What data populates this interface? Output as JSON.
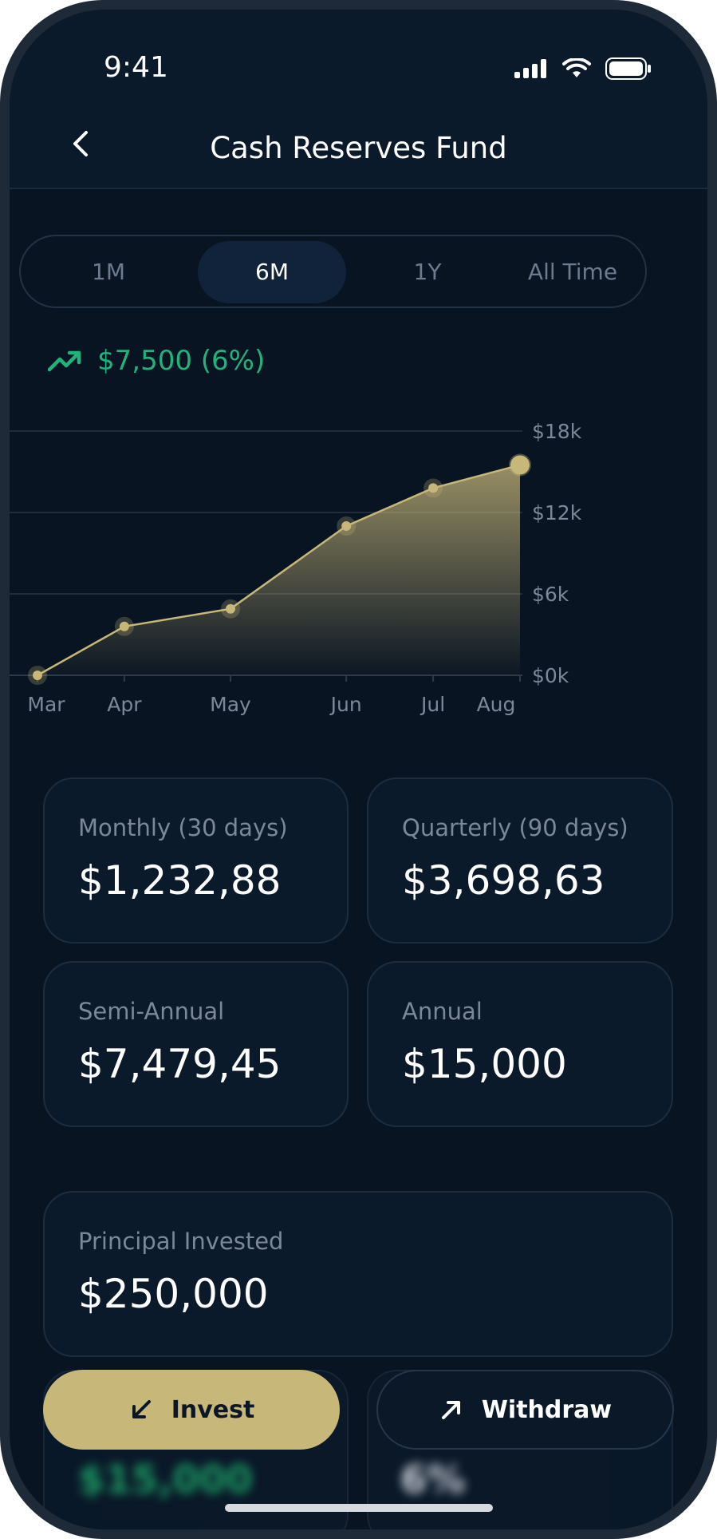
{
  "status_bar": {
    "time": "9:41"
  },
  "header": {
    "title": "Cash Reserves Fund"
  },
  "range_tabs": [
    {
      "label": "1M",
      "active": false
    },
    {
      "label": "6M",
      "active": true
    },
    {
      "label": "1Y",
      "active": false
    },
    {
      "label": "All Time",
      "active": false
    }
  ],
  "gain": {
    "text": "$7,500 (6%)",
    "color": "#21b47a"
  },
  "chart_data": {
    "type": "area",
    "categories": [
      "Mar",
      "Apr",
      "May",
      "Jun",
      "Jul",
      "Aug"
    ],
    "y_ticks": [
      "$18k",
      "$12k",
      "$6k",
      "$0k"
    ],
    "ylim": [
      0,
      18000
    ],
    "points": [
      {
        "label": "Mar",
        "x": 0,
        "y": 0
      },
      {
        "label": "Apr",
        "x": 0.9,
        "y": 3600
      },
      {
        "label": "May",
        "x": 2.0,
        "y": 4900
      },
      {
        "label": "Jun",
        "x": 3.2,
        "y": 11000
      },
      {
        "label": "Jul",
        "x": 4.1,
        "y": 13800
      },
      {
        "label": "Aug",
        "x": 5.0,
        "y": 15500
      }
    ],
    "line_color": "#c7b779"
  },
  "stats": [
    {
      "label": "Monthly (30 days)",
      "value": "$1,232,88"
    },
    {
      "label": "Quarterly (90 days)",
      "value": "$3,698,63"
    },
    {
      "label": "Semi-Annual",
      "value": "$7,479,45"
    },
    {
      "label": "Annual",
      "value": "$15,000"
    }
  ],
  "principal": {
    "label": "Principal Invested",
    "value": "$250,000"
  },
  "blurred": {
    "left": "$15,000",
    "right": "6%"
  },
  "actions": {
    "invest_label": "Invest",
    "withdraw_label": "Withdraw"
  }
}
